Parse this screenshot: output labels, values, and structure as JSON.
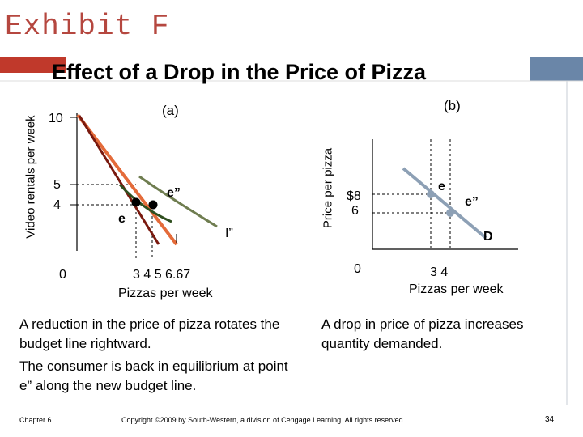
{
  "header": {
    "exhibit": "Exhibit F",
    "title": "Effect of a Drop in the Price of Pizza"
  },
  "panel_a": {
    "label": "(a)",
    "y_axis_label": "Video rentals per week",
    "x_axis_label": "Pizzas per week",
    "y_ticks": [
      "10",
      "5",
      "4",
      "0"
    ],
    "x_ticks": "3  4  5  6.67",
    "points": {
      "e": "e",
      "e2": "e”"
    },
    "curves": {
      "I": "I",
      "I2": "I”"
    }
  },
  "panel_b": {
    "label": "(b)",
    "y_axis_label": "Price per pizza",
    "x_axis_label": "Pizzas per week",
    "y_ticks": [
      "$8",
      "6",
      "0"
    ],
    "x_ticks": "3  4",
    "points": {
      "e": "e",
      "e2": "e”"
    },
    "curve": "D"
  },
  "text_left": {
    "p1": "A reduction in the price of pizza rotates the budget line rightward.",
    "p2": "The consumer is back in equilibrium at point e” along the new budget line."
  },
  "text_right": "A drop in price of pizza increases quantity demanded.",
  "footer": {
    "chapter": "Chapter 6",
    "copyright": "Copyright ©2009 by South-Western, a division of Cengage Learning. All rights reserved",
    "page": "34"
  },
  "colors": {
    "exhibit": "#b5473f",
    "band": "#c0392b",
    "blue_bar": "#6a86a8",
    "budget_old": "#7a1a0f",
    "budget_new": "#e46b3a",
    "indifference": "#2f4f1f",
    "indifference_new": "#6f7d50",
    "demand": "#8da0b5"
  }
}
